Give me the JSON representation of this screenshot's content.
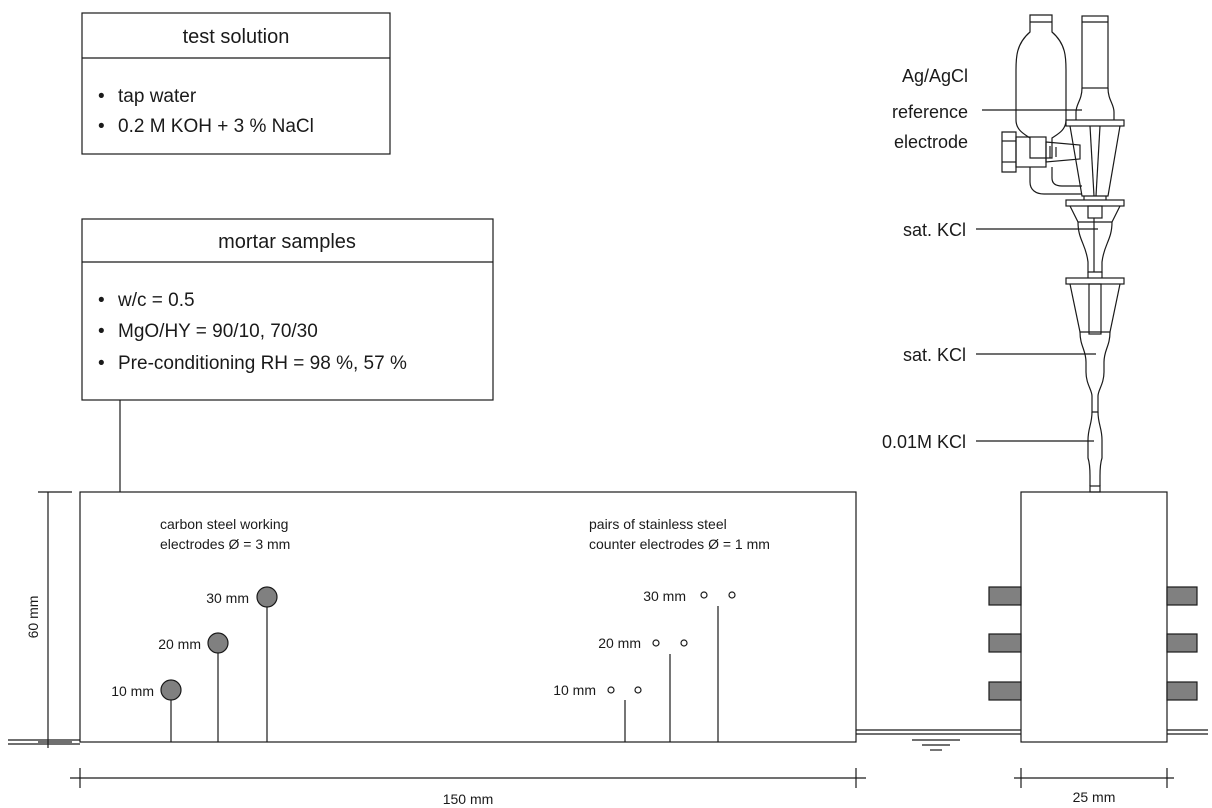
{
  "test_solution": {
    "title": "test solution",
    "items": [
      "tap water",
      "0.2 M KOH + 3 % NaCl"
    ]
  },
  "mortar_samples": {
    "title": "mortar samples",
    "items": [
      "w/c = 0.5",
      "MgO/HY = 90/10, 70/30",
      "Pre-conditioning RH = 98 %, 57 %"
    ]
  },
  "bullet_char": "•",
  "reference_electrode": {
    "label_lines": [
      "Ag/AgCl",
      "reference",
      "electrode"
    ],
    "stage_labels": [
      "sat. KCl",
      "sat. KCl",
      "0.01M KCl"
    ]
  },
  "working_electrodes": {
    "caption_lines": [
      "carbon steel working",
      "electrodes  Ø = 3 mm"
    ],
    "depth_labels": [
      "30 mm",
      "20 mm",
      "10 mm"
    ]
  },
  "counter_electrodes": {
    "caption_lines": [
      "pairs of stainless steel",
      "counter electrodes  Ø = 1 mm"
    ],
    "depth_labels": [
      "30 mm",
      "20 mm",
      "10 mm"
    ]
  },
  "dimensions": {
    "height": "60 mm",
    "length": "150 mm",
    "width": "25 mm"
  },
  "colors": {
    "line": "#1a1a1a",
    "electrode_fill": "#808080",
    "contact_fill": "#808080"
  }
}
